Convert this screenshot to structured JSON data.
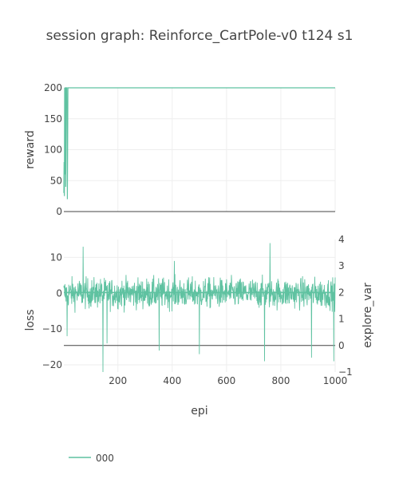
{
  "chart_data": {
    "type": "line",
    "title": "session graph: Reinforce_CartPole-v0 t124 s1",
    "series_color": "#5fc2a1",
    "legend": {
      "entries": [
        "000"
      ],
      "placement": "bottom-left"
    },
    "shared_x": {
      "label": "epi",
      "range": [
        1,
        1000
      ],
      "ticks": [
        200,
        400,
        600,
        800,
        1000
      ],
      "tick_labels": [
        "200",
        "400",
        "600",
        "800",
        "1000"
      ]
    },
    "subplots": [
      {
        "id": "reward",
        "ylabel": "reward",
        "ylim": [
          0,
          200
        ],
        "yticks": [
          0,
          50,
          100,
          150,
          200
        ],
        "ytick_labels": [
          "0",
          "50",
          "100",
          "150",
          "200"
        ],
        "grid": true,
        "series": [
          {
            "name": "000",
            "x": [
              1,
              2,
              3,
              4,
              5,
              6,
              7,
              8,
              9,
              10,
              11,
              12,
              14,
              16,
              18,
              20,
              22,
              1000
            ],
            "y": [
              30,
              80,
              25,
              200,
              60,
              200,
              200,
              40,
              200,
              200,
              200,
              200,
              20,
              200,
              200,
              200,
              200,
              200
            ]
          }
        ]
      },
      {
        "id": "loss",
        "ylabel": "loss",
        "ylim": [
          -22,
          15
        ],
        "yticks": [
          -20,
          -10,
          0,
          10
        ],
        "ytick_labels": [
          "−20",
          "−10",
          "0",
          "10"
        ],
        "grid": true,
        "series": [
          {
            "name": "000",
            "description": "noisy per-episode loss centered near 0, mostly within -10..10 with spikes",
            "baseline": 0,
            "spikes": [
              {
                "x": 13,
                "y": -12
              },
              {
                "x": 72,
                "y": 13
              },
              {
                "x": 145,
                "y": -22
              },
              {
                "x": 160,
                "y": -14
              },
              {
                "x": 352,
                "y": -16
              },
              {
                "x": 408,
                "y": 9
              },
              {
                "x": 500,
                "y": -17
              },
              {
                "x": 740,
                "y": -19
              },
              {
                "x": 760,
                "y": 14
              },
              {
                "x": 913,
                "y": -18
              },
              {
                "x": 995,
                "y": -19
              }
            ]
          }
        ]
      },
      {
        "id": "explore_var",
        "ylabel": "explore_var",
        "ylim": [
          -1,
          4
        ],
        "yticks": [
          -1,
          0,
          1,
          2,
          3,
          4
        ],
        "ytick_labels": [
          "−1",
          "0",
          "1",
          "2",
          "3",
          "4"
        ],
        "overlay_on": "loss",
        "side": "right",
        "series": [
          {
            "name": "000",
            "x": [
              1,
              1000
            ],
            "y": [
              2,
              2
            ]
          }
        ]
      }
    ]
  }
}
